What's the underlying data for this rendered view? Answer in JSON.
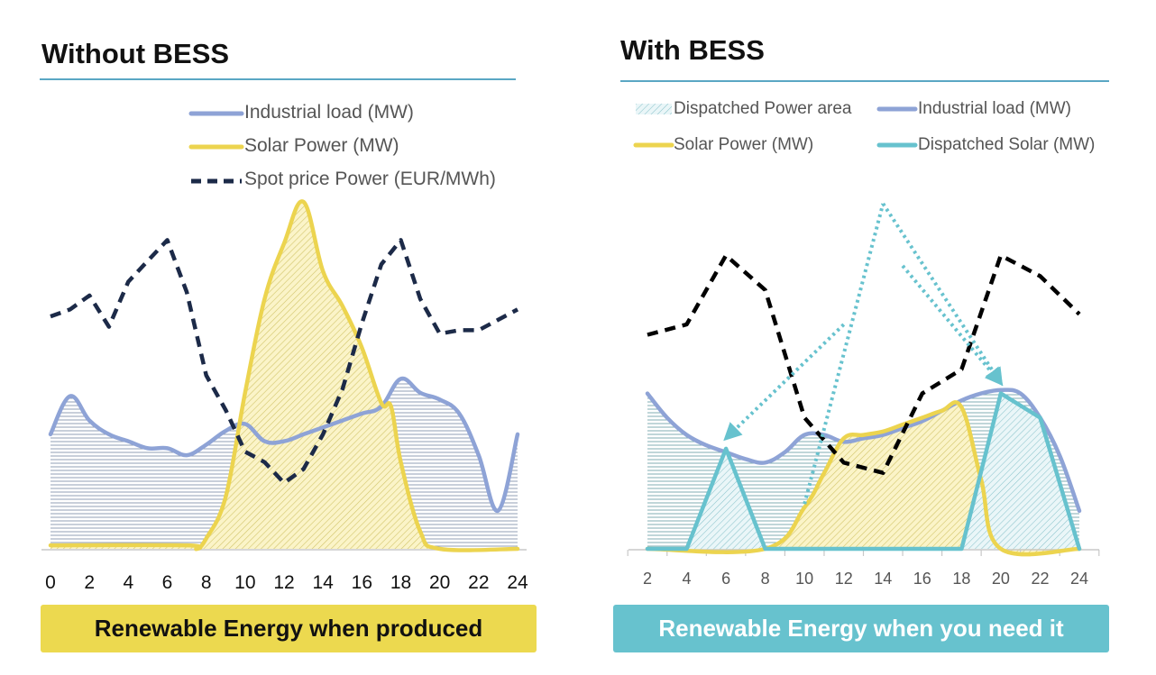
{
  "colors": {
    "load": "#8ea3d6",
    "solar": "#ecd44f",
    "price_left": "#1c2a48",
    "price_right": "#000000",
    "dispatched": "#67c2ce",
    "rule": "#5aa7c4",
    "banner_left": "#ecd94f",
    "banner_right": "#67c2ce"
  },
  "left": {
    "title": "Without BESS",
    "banner": "Renewable Energy when produced",
    "legend": {
      "load": "Industrial load (MW)",
      "solar": "Solar Power (MW)",
      "price": "Spot price Power (EUR/MWh)"
    }
  },
  "right": {
    "title": "With BESS",
    "banner": "Renewable Energy when you need it",
    "legend": {
      "area": "Dispatched Power area",
      "load": "Industrial load (MW)",
      "solar": "Solar Power (MW)",
      "dispatched": "Dispatched Solar (MW)"
    }
  },
  "chart_data": [
    {
      "type": "line",
      "title": "Without BESS",
      "xlabel": "",
      "ylabel": "",
      "x_ticks": [
        0,
        2,
        4,
        6,
        8,
        10,
        12,
        14,
        16,
        18,
        20,
        22,
        24
      ],
      "xlim": [
        0,
        24
      ],
      "ylim": [
        0,
        100
      ],
      "legend_position": "top-right",
      "series": [
        {
          "name": "Industrial load (MW)",
          "key": "load",
          "style": "solid",
          "filled": true,
          "x": [
            0,
            1,
            2,
            3,
            4,
            5,
            6,
            7,
            8,
            9,
            10,
            11,
            12,
            13,
            14,
            15,
            16,
            17,
            18,
            19,
            20,
            21,
            22,
            23,
            24
          ],
          "values": [
            33,
            44,
            37,
            33,
            31,
            29,
            29,
            27,
            30,
            34,
            36,
            31,
            31,
            33,
            35,
            37,
            39,
            41,
            49,
            45,
            43,
            39,
            27,
            11,
            33
          ]
        },
        {
          "name": "Solar Power (MW)",
          "key": "solar",
          "style": "solid",
          "filled": true,
          "x": [
            0,
            7,
            7.5,
            8,
            9,
            10,
            11,
            12,
            13,
            14,
            15,
            16,
            17,
            17.5,
            18,
            19,
            20,
            24
          ],
          "values": [
            1,
            1,
            0,
            3,
            15,
            45,
            72,
            88,
            100,
            80,
            70,
            58,
            42,
            41,
            25,
            5,
            0,
            0
          ]
        },
        {
          "name": "Spot price Power (EUR/MWh)",
          "key": "price",
          "style": "dashed",
          "filled": false,
          "x": [
            0,
            1,
            2,
            3,
            4,
            5,
            6,
            7,
            8,
            9,
            10,
            11,
            12,
            13,
            14,
            15,
            16,
            17,
            18,
            19,
            20,
            21,
            22,
            23,
            24
          ],
          "values": [
            67,
            69,
            73,
            64,
            77,
            83,
            89,
            74,
            50,
            40,
            28,
            25,
            19,
            23,
            33,
            46,
            65,
            82,
            89,
            72,
            62,
            63,
            63,
            66,
            69
          ]
        }
      ]
    },
    {
      "type": "line",
      "title": "With BESS",
      "xlabel": "",
      "ylabel": "",
      "x_ticks": [
        2,
        4,
        6,
        8,
        10,
        12,
        14,
        16,
        18,
        20,
        22,
        24
      ],
      "xlim": [
        2,
        24
      ],
      "ylim": [
        0,
        100
      ],
      "legend_position": "top",
      "series": [
        {
          "name": "Industrial load (MW)",
          "key": "load",
          "style": "solid",
          "filled": true,
          "x": [
            2,
            3,
            4,
            5,
            6,
            7,
            8,
            9,
            10,
            11,
            12,
            13,
            14,
            15,
            16,
            17,
            18,
            19,
            20,
            21,
            22,
            23,
            24
          ],
          "values": [
            45,
            38,
            33,
            30,
            28,
            26,
            25,
            28,
            33,
            33,
            31,
            32,
            33,
            35,
            37,
            40,
            43,
            45,
            46,
            45,
            38,
            27,
            11
          ]
        },
        {
          "name": "Solar Power (MW)",
          "key": "solar",
          "style": "solid",
          "filled": true,
          "x": [
            2,
            8,
            10,
            11,
            12,
            13,
            14,
            15,
            16,
            17,
            18,
            19,
            20,
            24
          ],
          "values": [
            0,
            0,
            12,
            22,
            32,
            33,
            34,
            36,
            38,
            40,
            41,
            20,
            0,
            0
          ]
        },
        {
          "name": "Dispatched Solar (MW)",
          "key": "dispatched",
          "style": "solid",
          "filled": true,
          "x": [
            2,
            4,
            6,
            8,
            18,
            20,
            22,
            24
          ],
          "values": [
            0,
            0,
            29,
            0,
            0,
            45,
            38,
            0
          ]
        },
        {
          "name": "Spot price",
          "key": "price",
          "style": "dashed",
          "filled": false,
          "x": [
            2,
            4,
            6,
            8,
            10,
            12,
            14,
            16,
            18,
            20,
            22,
            24
          ],
          "values": [
            62,
            65,
            85,
            75,
            38,
            25,
            22,
            45,
            52,
            85,
            79,
            68
          ]
        }
      ],
      "annotations": [
        {
          "type": "arrow",
          "style": "dotted",
          "from": [
            10,
            13
          ],
          "to": [
            14,
            100
          ]
        },
        {
          "type": "arrow",
          "style": "dotted",
          "from": [
            12,
            65
          ],
          "to": [
            6,
            32
          ]
        },
        {
          "type": "arrow",
          "style": "dotted",
          "from": [
            14,
            100
          ],
          "to": [
            20,
            48
          ]
        },
        {
          "type": "arrow",
          "style": "dotted",
          "from": [
            15,
            82
          ],
          "to": [
            20,
            48
          ]
        }
      ]
    }
  ]
}
